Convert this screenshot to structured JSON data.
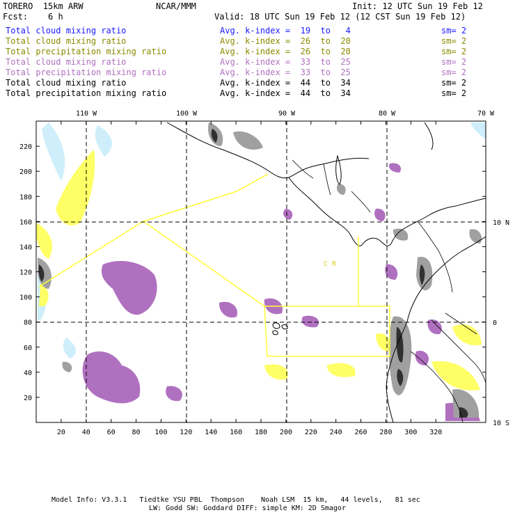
{
  "header": {
    "model": "TORERO  15km ARW",
    "org": "NCAR/MMM",
    "init": "Init: 12 UTC Sun 19 Feb 12",
    "fcst": "Fcst:    6 h",
    "valid": "Valid: 18 UTC Sun 19 Feb 12 (12 CST Sun 19 Feb 12)"
  },
  "legend": [
    {
      "field": "Total cloud mixing ratio",
      "kindex": "Avg. k-index =  19  to   4",
      "sm": "sm= 2",
      "color": "#1a1aff",
      "cls": "blue"
    },
    {
      "field": "Total cloud mixing ratio",
      "kindex": "Avg. k-index =  26  to  20",
      "sm": "sm= 2",
      "color": "#8a8a00",
      "cls": "olive"
    },
    {
      "field": "Total precipitation mixing ratio",
      "kindex": "Avg. k-index =  26  to  20",
      "sm": "sm= 2",
      "color": "#8a8a00",
      "cls": "olive"
    },
    {
      "field": "Total cloud mixing ratio",
      "kindex": "Avg. k-index =  33  to  25",
      "sm": "sm= 2",
      "color": "#b070c0",
      "cls": "purple"
    },
    {
      "field": "Total precipitation mixing ratio",
      "kindex": "Avg. k-index =  33  to  25",
      "sm": "sm= 2",
      "color": "#b070c0",
      "cls": "purple"
    },
    {
      "field": "Total cloud mixing ratio",
      "kindex": "Avg. k-index =  44  to  34",
      "sm": "sm= 2",
      "color": "#000000",
      "cls": "black"
    },
    {
      "field": "Total precipitation mixing ratio",
      "kindex": "Avg. k-index =  44  to  34",
      "sm": "sm= 2",
      "color": "#000000",
      "cls": "black"
    }
  ],
  "map": {
    "lon_labels": [
      "110 W",
      "100 W",
      "90 W",
      "80 W",
      "70 W"
    ],
    "lat_labels": [
      "10 N",
      "0",
      "10 S"
    ],
    "x_ticks": [
      "20",
      "40",
      "60",
      "80",
      "100",
      "120",
      "140",
      "160",
      "180",
      "200",
      "220",
      "240",
      "260",
      "280",
      "300",
      "320"
    ],
    "y_ticks": [
      "20",
      "40",
      "60",
      "80",
      "100",
      "120",
      "140",
      "160",
      "180",
      "200",
      "220"
    ],
    "region_labels": [
      "C R"
    ],
    "colors": {
      "cyan": "#cdeefa",
      "yellow": "#ffff66",
      "purple": "#b070c0",
      "gray": "#a0a0a0",
      "dark": "#303030",
      "frame": "#000000",
      "boxes": "#ffff33"
    }
  },
  "footer": {
    "line1": "Model Info: V3.3.1   Tiedtke YSU PBL  Thompson    Noah LSM  15 km,   44 levels,   81 sec",
    "line2": "LW: Godd SW: Goddard DIFF: simple KM: 2D Smagor"
  }
}
